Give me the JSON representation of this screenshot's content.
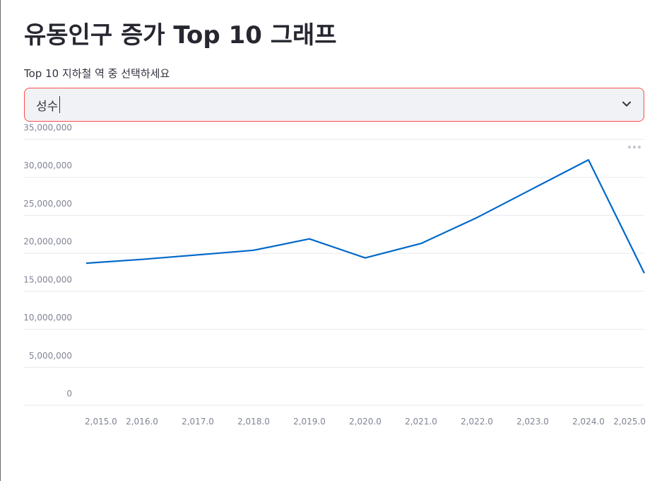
{
  "page": {
    "title": "유동인구 증가 Top 10 그래프"
  },
  "selector": {
    "label": "Top 10 지하철 역 중 선택하세요",
    "value": "성수"
  },
  "colors": {
    "line": "#0068c9",
    "accent_border": "#ff4b4b",
    "select_bg": "#f0f2f6",
    "grid": "#e6e9ef",
    "tick_text": "#808495"
  },
  "chart_data": {
    "type": "line",
    "title": "",
    "xlabel": "",
    "ylabel": "",
    "x": [
      2015,
      2016,
      2017,
      2018,
      2019,
      2020,
      2021,
      2022,
      2023,
      2024,
      2025
    ],
    "x_tick_labels": [
      "2,015.0",
      "2,016.0",
      "2,017.0",
      "2,018.0",
      "2,019.0",
      "2,020.0",
      "2,021.0",
      "2,022.0",
      "2,023.0",
      "2,024.0",
      "2,025.0"
    ],
    "y_tick_values": [
      0,
      5000000,
      10000000,
      15000000,
      20000000,
      25000000,
      30000000,
      35000000
    ],
    "y_tick_labels": [
      "0",
      "5,000,000",
      "10,000,000",
      "15,000,000",
      "20,000,000",
      "25,000,000",
      "30,000,000",
      "35,000,000"
    ],
    "ylim": [
      0,
      35000000
    ],
    "grid": true,
    "legend": "none",
    "series": [
      {
        "values": [
          18700000,
          19200000,
          19800000,
          20400000,
          21900000,
          19400000,
          21300000,
          24700000,
          28500000,
          32300000,
          17400000
        ]
      }
    ]
  }
}
